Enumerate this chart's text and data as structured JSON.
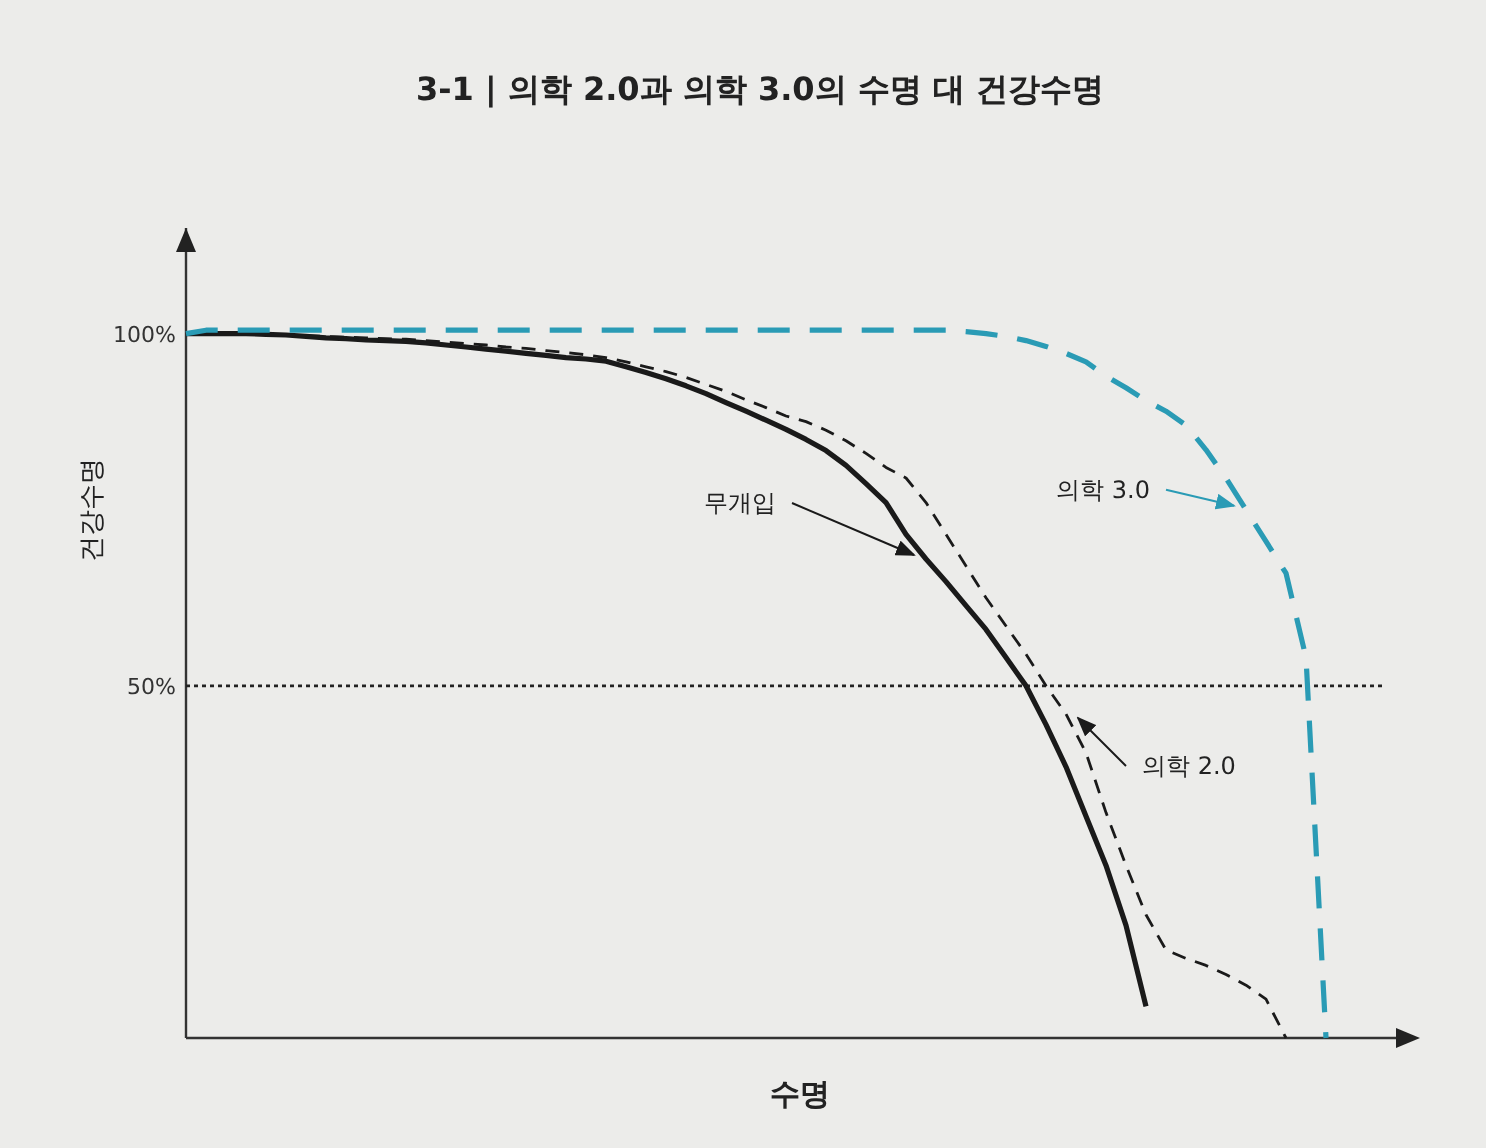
{
  "chart_data": {
    "type": "line",
    "title": "3-1 | 의학 2.0과 의학 3.0의 수명 대 건강수명",
    "xlabel": "수명",
    "ylabel": "건강수명",
    "categories": [
      null,
      null,
      null,
      null,
      null,
      null,
      null,
      null,
      null,
      null,
      null,
      null,
      null,
      null,
      null,
      null,
      null,
      null,
      null,
      null,
      null,
      null,
      null,
      null,
      null,
      null,
      null,
      null,
      null,
      null,
      null,
      null,
      null,
      null,
      null,
      null,
      null,
      null,
      null,
      null,
      null,
      null,
      null,
      null,
      null,
      null,
      null,
      null,
      null,
      null,
      null,
      null,
      null,
      null,
      null,
      null,
      null,
      null,
      null,
      null,
      null
    ],
    "ylim": [
      0,
      115
    ],
    "yticks": [
      {
        "value": 50,
        "label": "50%"
      },
      {
        "value": 100,
        "label": "100%"
      }
    ],
    "ref_lines": [
      {
        "axis": "y",
        "value": 50,
        "line_style": "dotted",
        "color": "#222222"
      }
    ],
    "series": [
      {
        "name": "무개입",
        "color": "#1a1a1a",
        "line_style": "solid",
        "values": [
          100,
          100,
          100,
          100,
          99.9,
          99.8,
          99.6,
          99.4,
          99.3,
          99.1,
          99,
          98.9,
          98.7,
          98.4,
          98.1,
          97.8,
          97.5,
          97.2,
          96.9,
          96.6,
          96.4,
          96.1,
          95.3,
          94.5,
          93.6,
          92.6,
          91.5,
          90.2,
          89,
          87.7,
          86.4,
          85,
          83.4,
          81.3,
          78.7,
          76,
          71.5,
          68,
          64.8,
          61.4,
          58,
          54,
          50,
          44.5,
          38.5,
          31.5,
          24.5,
          16,
          4.5,
          null,
          null,
          null,
          null,
          null,
          null,
          null,
          null,
          null,
          null,
          null,
          null
        ]
      },
      {
        "name": "의학 2.0",
        "color": "#1a1a1a",
        "line_style": "dashed",
        "values": [
          100,
          100,
          100,
          100,
          99.9,
          99.8,
          99.7,
          99.6,
          99.5,
          99.4,
          99.3,
          99.2,
          99,
          98.8,
          98.6,
          98.4,
          98.1,
          97.9,
          97.6,
          97.3,
          97,
          96.6,
          96,
          95.3,
          94.6,
          93.8,
          92.8,
          91.8,
          90.6,
          89.5,
          88.3,
          87.5,
          86.3,
          84.8,
          83,
          81,
          79.5,
          76,
          71.5,
          67,
          62.5,
          58.5,
          54.5,
          50,
          46,
          40.5,
          32,
          24.5,
          17.5,
          12.5,
          11.3,
          10.3,
          9,
          7.5,
          5.5,
          0,
          null,
          null,
          null,
          null,
          null
        ]
      },
      {
        "name": "의학 3.0",
        "color": "#2a9bb5",
        "line_style": "dashed",
        "values": [
          100,
          100.5,
          100.5,
          100.5,
          100.5,
          100.5,
          100.5,
          100.5,
          100.5,
          100.5,
          100.5,
          100.5,
          100.5,
          100.5,
          100.5,
          100.5,
          100.5,
          100.5,
          100.5,
          100.5,
          100.5,
          100.5,
          100.5,
          100.5,
          100.5,
          100.5,
          100.5,
          100.5,
          100.5,
          100.5,
          100.5,
          100.5,
          100.5,
          100.5,
          100.5,
          100.5,
          100.5,
          100.5,
          100.5,
          100.3,
          100,
          99.6,
          99,
          98.2,
          97.2,
          96,
          94,
          92.3,
          90.5,
          89,
          87,
          83.5,
          79.5,
          75,
          70.5,
          66,
          54,
          0,
          null,
          null,
          null
        ]
      }
    ]
  }
}
